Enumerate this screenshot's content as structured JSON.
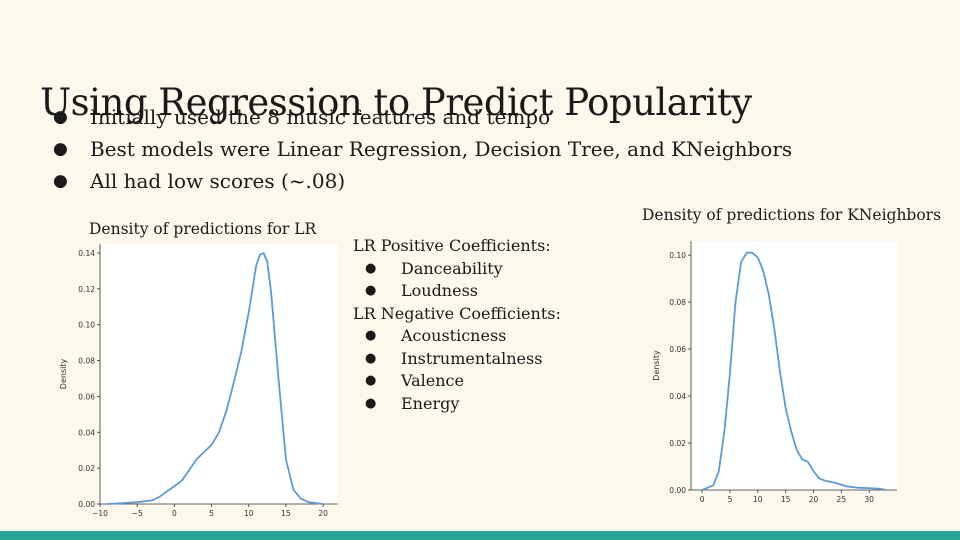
{
  "slide": {
    "title": "Using Regression to Predict Popularity",
    "bullets": [
      "Initially used the 8 music features and tempo",
      "Best models were Linear Regression, Decision Tree, and KNeighbors",
      "All had low scores (~.08)"
    ],
    "bullet_glyph": "●",
    "footer_color": "#26a69a",
    "background_color": "#fdf8ec"
  },
  "coefficients": {
    "positive_heading": "LR Positive Coefficients:",
    "positive": [
      "Danceability",
      "Loudness"
    ],
    "negative_heading": "LR Negative Coefficients:",
    "negative": [
      "Acousticness",
      "Instrumentalness",
      "Valence",
      "Energy"
    ]
  },
  "chart_data": [
    {
      "type": "line",
      "title": "Density of predictions for LR",
      "xlabel": "",
      "ylabel": "Density",
      "xlim": [
        -10,
        22
      ],
      "ylim": [
        0,
        0.145
      ],
      "xticks": [
        -10,
        -5,
        0,
        5,
        10,
        15,
        20
      ],
      "xtick_labels": [
        "−10",
        "−5",
        "0",
        "5",
        "10",
        "15",
        "20"
      ],
      "yticks": [
        0,
        0.02,
        0.04,
        0.06,
        0.08,
        0.1,
        0.12,
        0.14
      ],
      "ytick_labels": [
        "0.00",
        "0.02",
        "0.04",
        "0.06",
        "0.08",
        "0.10",
        "0.12",
        "0.14"
      ],
      "line_color": "#5b9bd5",
      "grid": false,
      "series": [
        {
          "x": [
            -9,
            -7,
            -5,
            -3,
            -2,
            -1,
            0,
            1,
            2,
            3,
            4,
            5,
            6,
            7,
            8,
            9,
            10,
            11,
            11.5,
            12,
            12.5,
            13,
            14,
            15,
            16,
            17,
            18,
            20
          ],
          "y": [
            0.0,
            0.0005,
            0.001,
            0.002,
            0.004,
            0.007,
            0.01,
            0.013,
            0.019,
            0.025,
            0.029,
            0.033,
            0.04,
            0.052,
            0.068,
            0.085,
            0.107,
            0.133,
            0.139,
            0.14,
            0.135,
            0.118,
            0.07,
            0.025,
            0.008,
            0.003,
            0.001,
            0.0
          ]
        }
      ]
    },
    {
      "type": "line",
      "title": "Density of predictions for KNeighbors",
      "xlabel": "",
      "ylabel": "Density",
      "xlim": [
        -2,
        35
      ],
      "ylim": [
        0,
        0.106
      ],
      "xticks": [
        0,
        5,
        10,
        15,
        20,
        25,
        30
      ],
      "xtick_labels": [
        "0",
        "5",
        "10",
        "15",
        "20",
        "25",
        "30"
      ],
      "yticks": [
        0,
        0.02,
        0.04,
        0.06,
        0.08,
        0.1
      ],
      "ytick_labels": [
        "0.00",
        "0.02",
        "0.04",
        "0.06",
        "0.08",
        "0.10"
      ],
      "line_color": "#5b9bd5",
      "grid": false,
      "series": [
        {
          "x": [
            0,
            2,
            3,
            4,
            5,
            6,
            7,
            8,
            9,
            10,
            11,
            12,
            13,
            14,
            15,
            16,
            17,
            18,
            19,
            20,
            21,
            22,
            24,
            26,
            28,
            30,
            32,
            33
          ],
          "y": [
            0.0,
            0.002,
            0.008,
            0.025,
            0.05,
            0.08,
            0.097,
            0.101,
            0.101,
            0.099,
            0.093,
            0.083,
            0.068,
            0.05,
            0.035,
            0.025,
            0.017,
            0.013,
            0.012,
            0.008,
            0.005,
            0.004,
            0.003,
            0.0015,
            0.001,
            0.0008,
            0.0005,
            0.0
          ]
        }
      ]
    }
  ]
}
